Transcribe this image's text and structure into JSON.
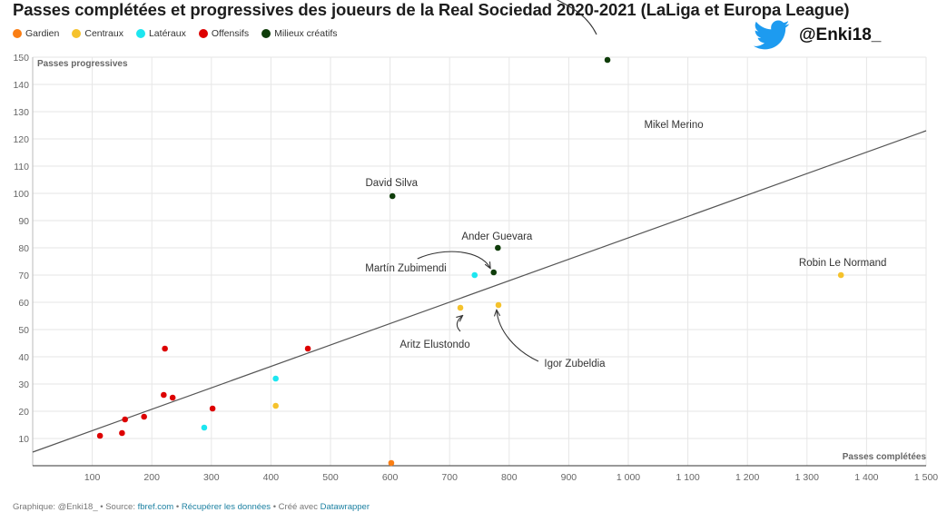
{
  "title": "Passes complétées et progressives des joueurs de la Real Sociedad 2020-2021 (LaLiga et Europa League)",
  "twitter_handle": "@Enki18_",
  "legend": [
    {
      "label": "Gardien",
      "color": "#fa7e14"
    },
    {
      "label": "Centraux",
      "color": "#f5c22c"
    },
    {
      "label": "Latéraux",
      "color": "#1de6f0"
    },
    {
      "label": "Offensifs",
      "color": "#dd0000"
    },
    {
      "label": "Milieux créatifs",
      "color": "#0f3d0a"
    }
  ],
  "footer": {
    "prefix": "Graphique: @Enki18_ • Source: ",
    "source": "fbref.com",
    "sep1": " • ",
    "download": "Récupérer les données",
    "sep2": " • Créé avec ",
    "tool": "Datawrapper"
  },
  "chart_data": {
    "type": "scatter",
    "xlabel": "Passes complétées",
    "ylabel": "Passes progressives",
    "xlim": [
      0,
      1500
    ],
    "ylim": [
      0,
      150
    ],
    "x_ticks": [
      {
        "value": 100,
        "label": "100"
      },
      {
        "value": 200,
        "label": "200"
      },
      {
        "value": 300,
        "label": "300"
      },
      {
        "value": 400,
        "label": "400"
      },
      {
        "value": 500,
        "label": "500"
      },
      {
        "value": 600,
        "label": "600"
      },
      {
        "value": 700,
        "label": "700"
      },
      {
        "value": 800,
        "label": "800"
      },
      {
        "value": 900,
        "label": "900"
      },
      {
        "value": 1000,
        "label": "1 000"
      },
      {
        "value": 1100,
        "label": "1 100"
      },
      {
        "value": 1200,
        "label": "1 200"
      },
      {
        "value": 1300,
        "label": "1 300"
      },
      {
        "value": 1400,
        "label": "1 400"
      },
      {
        "value": 1500,
        "label": "1 500"
      }
    ],
    "y_ticks": [
      10,
      20,
      30,
      40,
      50,
      60,
      70,
      80,
      90,
      100,
      110,
      120,
      130,
      140,
      150
    ],
    "grid": true,
    "trendline": {
      "x": [
        0,
        1500
      ],
      "y": [
        5,
        123
      ]
    },
    "series": [
      {
        "name": "Gardien",
        "color": "#fa7e14",
        "points": [
          {
            "x": 602,
            "y": 1
          }
        ]
      },
      {
        "name": "Centraux",
        "color": "#f5c22c",
        "points": [
          {
            "x": 1357,
            "y": 70,
            "label": "Robin Le Normand"
          },
          {
            "x": 782,
            "y": 59,
            "label": "Igor Zubeldia"
          },
          {
            "x": 718,
            "y": 58,
            "label": "Aritz Elustondo"
          },
          {
            "x": 408,
            "y": 22
          }
        ]
      },
      {
        "name": "Latéraux",
        "color": "#1de6f0",
        "points": [
          {
            "x": 742,
            "y": 70
          },
          {
            "x": 408,
            "y": 32
          },
          {
            "x": 288,
            "y": 14
          }
        ]
      },
      {
        "name": "Offensifs",
        "color": "#dd0000",
        "points": [
          {
            "x": 462,
            "y": 43
          },
          {
            "x": 222,
            "y": 43
          },
          {
            "x": 220,
            "y": 26
          },
          {
            "x": 235,
            "y": 25
          },
          {
            "x": 302,
            "y": 21
          },
          {
            "x": 187,
            "y": 18
          },
          {
            "x": 155,
            "y": 17
          },
          {
            "x": 150,
            "y": 12
          },
          {
            "x": 113,
            "y": 11
          }
        ]
      },
      {
        "name": "Milieux créatifs",
        "color": "#0f3d0a",
        "points": [
          {
            "x": 965,
            "y": 149,
            "label": "Mikel Merino"
          },
          {
            "x": 604,
            "y": 99,
            "label": "David Silva"
          },
          {
            "x": 781,
            "y": 80,
            "label": "Ander Guevara"
          },
          {
            "x": 774,
            "y": 71,
            "label": "Martín Zubimendi"
          }
        ]
      }
    ]
  }
}
